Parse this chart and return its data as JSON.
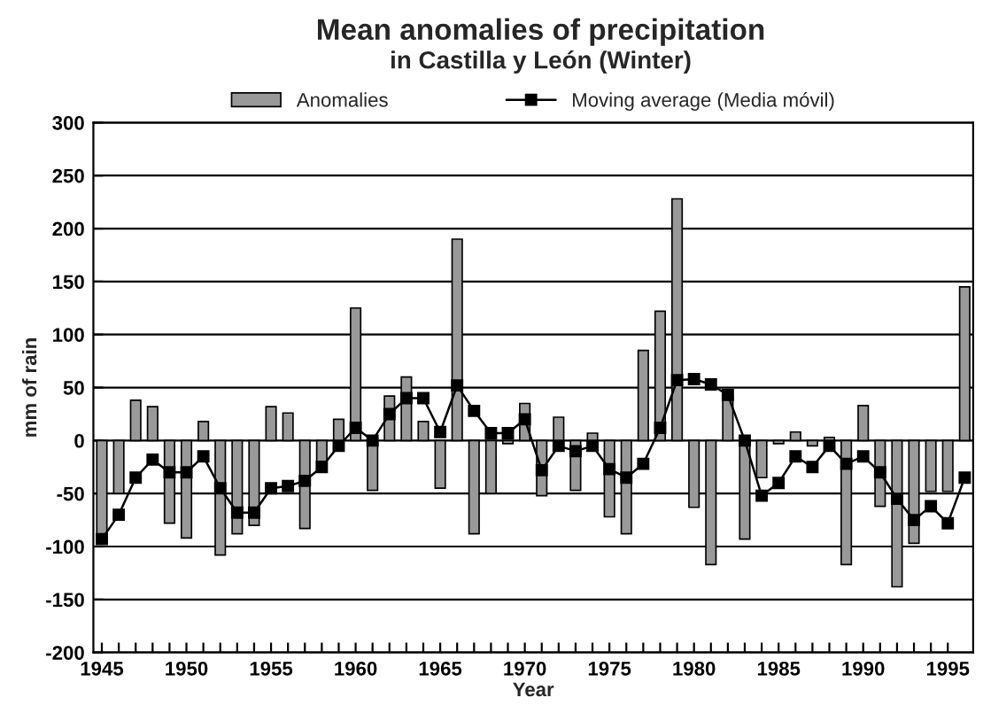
{
  "chart_data": {
    "type": "bar",
    "title": "Mean anomalies of precipitation",
    "subtitle": "in Castilla y León (Winter)",
    "xlabel": "Year",
    "ylabel": "mm of rain",
    "x": [
      1945,
      1946,
      1947,
      1948,
      1949,
      1950,
      1951,
      1952,
      1953,
      1954,
      1955,
      1956,
      1957,
      1958,
      1959,
      1960,
      1961,
      1962,
      1963,
      1964,
      1965,
      1966,
      1967,
      1968,
      1969,
      1970,
      1971,
      1972,
      1973,
      1974,
      1975,
      1976,
      1977,
      1978,
      1979,
      1980,
      1981,
      1982,
      1983,
      1984,
      1985,
      1986,
      1987,
      1988,
      1989,
      1990,
      1991,
      1992,
      1993,
      1994,
      1995,
      1996
    ],
    "series": [
      {
        "name": "Anomalies",
        "color": "#999999",
        "values": [
          -95,
          -50,
          38,
          32,
          -78,
          -92,
          18,
          -108,
          -88,
          -80,
          32,
          26,
          -83,
          -20,
          20,
          125,
          -47,
          42,
          60,
          18,
          -45,
          190,
          -88,
          -50,
          -3,
          35,
          -52,
          22,
          -47,
          7,
          -72,
          -88,
          85,
          122,
          228,
          -63,
          -117,
          42,
          -93,
          -35,
          -3,
          8,
          -5,
          3,
          -117,
          33,
          -62,
          -138,
          -97,
          -48,
          -48,
          145
        ]
      },
      {
        "name": "Moving average (Media móvil)",
        "type": "line",
        "color": "#000000",
        "marker": "square",
        "line_style": "solid",
        "values": [
          -93,
          -70,
          -35,
          -18,
          -30,
          -30,
          -15,
          -45,
          -68,
          -68,
          -45,
          -43,
          -38,
          -25,
          -5,
          12,
          0,
          25,
          40,
          40,
          8,
          52,
          28,
          7,
          7,
          20,
          -28,
          -5,
          -10,
          -5,
          -27,
          -35,
          -22,
          12,
          57,
          58,
          53,
          43,
          0,
          -52,
          -40,
          -15,
          -25,
          -5,
          -22,
          -15,
          -30,
          -55,
          -75,
          -62,
          -78,
          -35
        ]
      }
    ],
    "xlim": [
      1944.5,
      1996.5
    ],
    "xticks": [
      1945,
      {
        "value": 1946,
        "label": null
      },
      {
        "value": 1947,
        "label": null
      },
      {
        "value": 1948,
        "label": null
      },
      {
        "value": 1949,
        "label": null
      },
      1950,
      {
        "value": 1951,
        "label": null
      },
      {
        "value": 1952,
        "label": null
      },
      {
        "value": 1953,
        "label": null
      },
      {
        "value": 1954,
        "label": null
      },
      1955,
      {
        "value": 1956,
        "label": null
      },
      {
        "value": 1957,
        "label": null
      },
      {
        "value": 1958,
        "label": null
      },
      {
        "value": 1959,
        "label": null
      },
      1960,
      {
        "value": 1961,
        "label": null
      },
      {
        "value": 1962,
        "label": null
      },
      {
        "value": 1963,
        "label": null
      },
      {
        "value": 1964,
        "label": null
      },
      1965,
      {
        "value": 1966,
        "label": null
      },
      {
        "value": 1967,
        "label": null
      },
      {
        "value": 1968,
        "label": null
      },
      {
        "value": 1969,
        "label": null
      },
      1970,
      {
        "value": 1971,
        "label": null
      },
      {
        "value": 1972,
        "label": null
      },
      {
        "value": 1973,
        "label": null
      },
      {
        "value": 1974,
        "label": null
      },
      1975,
      {
        "value": 1976,
        "label": null
      },
      {
        "value": 1977,
        "label": null
      },
      {
        "value": 1978,
        "label": null
      },
      {
        "value": 1979,
        "label": null
      },
      1980,
      {
        "value": 1981,
        "label": null
      },
      {
        "value": 1982,
        "label": null
      },
      {
        "value": 1983,
        "label": null
      },
      {
        "value": 1984,
        "label": null
      },
      1985,
      {
        "value": 1986,
        "label": null
      },
      {
        "value": 1987,
        "label": null
      },
      {
        "value": 1988,
        "label": null
      },
      {
        "value": 1989,
        "label": null
      },
      1990,
      {
        "value": 1991,
        "label": null
      },
      {
        "value": 1992,
        "label": null
      },
      {
        "value": 1993,
        "label": null
      },
      {
        "value": 1994,
        "label": null
      },
      1995
    ],
    "ylim": [
      -200,
      300
    ],
    "yticks": [
      -200,
      -150,
      -100,
      -50,
      0,
      50,
      100,
      150,
      200,
      250,
      300
    ],
    "grid": "y",
    "legend": "top"
  }
}
